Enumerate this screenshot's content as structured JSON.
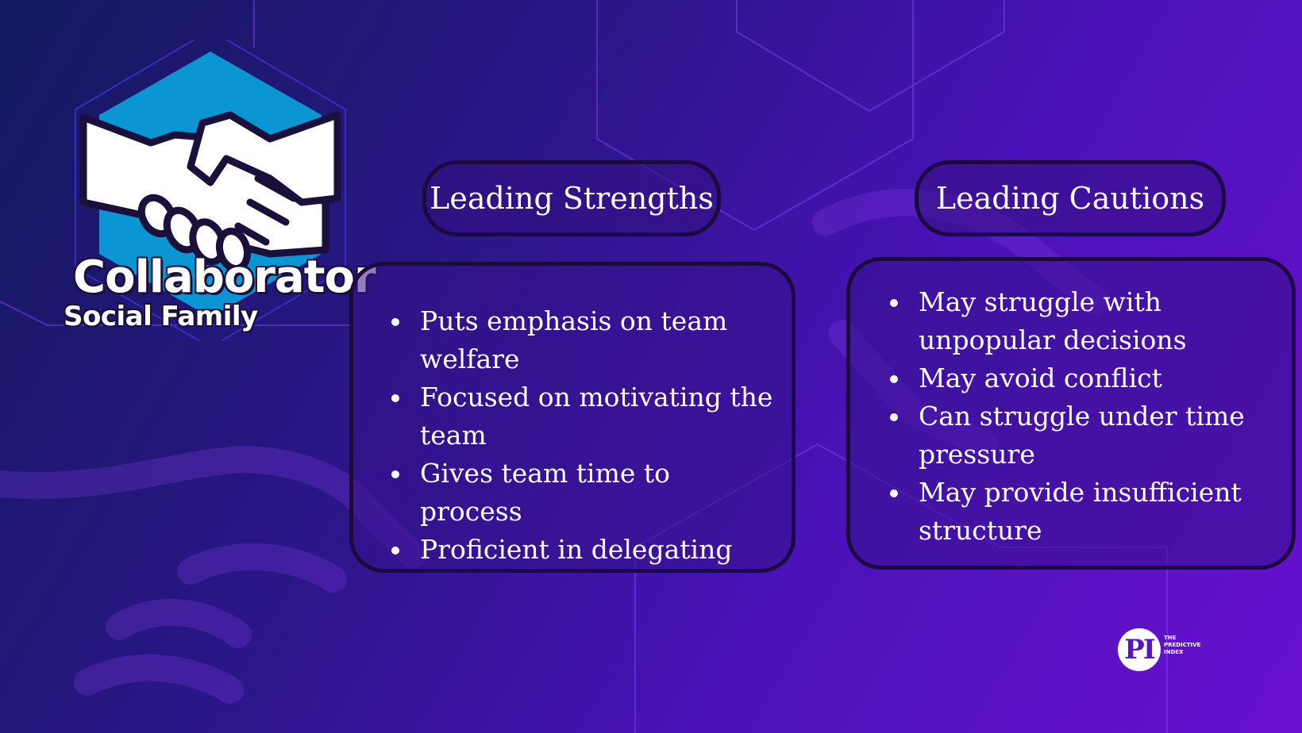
{
  "badge": {
    "title": "Collaborator",
    "subtitle": "Social Family",
    "icon": "handshake-icon",
    "hex_color": "#0a96d2"
  },
  "strengths": {
    "heading": "Leading Strengths",
    "items": [
      "Puts emphasis on team welfare",
      "Focused on motivating the team",
      "Gives team time to process",
      "Proficient in delegating"
    ]
  },
  "cautions": {
    "heading": "Leading Cautions",
    "items": [
      "May struggle with unpopular decisions",
      "May avoid conflict",
      "Can struggle under time pressure",
      "May provide insufficient structure"
    ]
  },
  "logo": {
    "mark": "PI",
    "line1": "THE",
    "line2": "PREDICTIVE",
    "line3": "INDEX"
  },
  "colors": {
    "background_start": "#141a5e",
    "background_end": "#6a10d0",
    "panel_border": "#1a0a3d",
    "text": "#ffffff"
  }
}
